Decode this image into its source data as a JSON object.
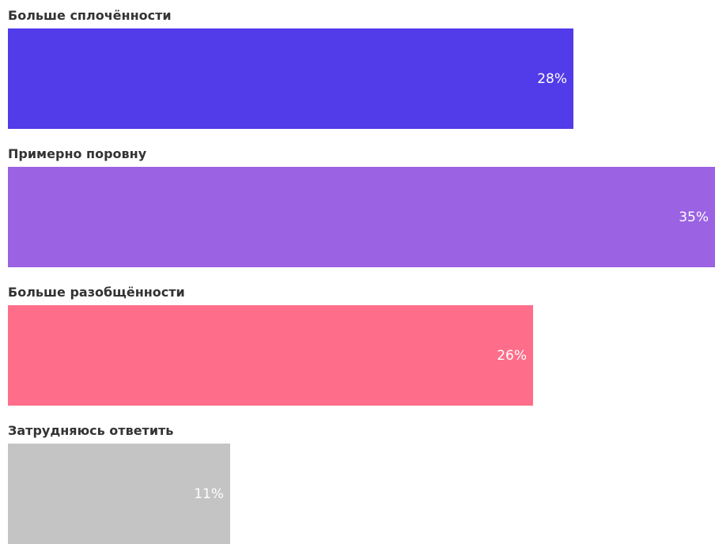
{
  "chart_data": {
    "type": "bar",
    "orientation": "horizontal",
    "categories": [
      "Больше сплочённости",
      "Примерно поровну",
      "Больше разобщённости",
      "Затрудняюсь ответить"
    ],
    "values": [
      28,
      35,
      26,
      11
    ],
    "value_labels": [
      "28%",
      "35%",
      "26%",
      "11%"
    ],
    "unit": "%",
    "colors": [
      "#523be8",
      "#9b62e3",
      "#fe6e8a",
      "#c4c4c4"
    ],
    "xlim": [
      0,
      35
    ],
    "grid": false,
    "legend": "none"
  }
}
